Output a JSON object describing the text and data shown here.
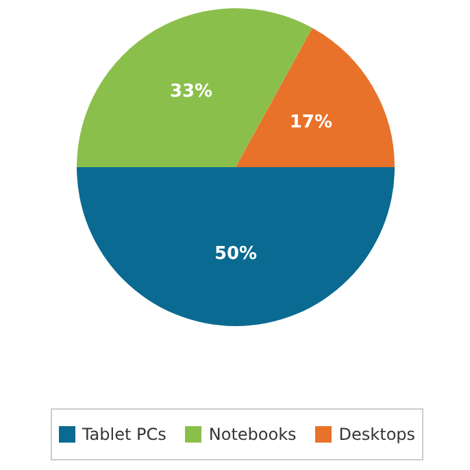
{
  "chart_data": {
    "type": "pie",
    "categories": [
      "Tablet PCs",
      "Notebooks",
      "Desktops"
    ],
    "values": [
      50,
      33,
      17
    ],
    "colors": [
      "#0a6a91",
      "#8bbf4c",
      "#e8722a"
    ],
    "value_labels": [
      "50%",
      "33%",
      "17%"
    ],
    "legend": "bottom"
  }
}
